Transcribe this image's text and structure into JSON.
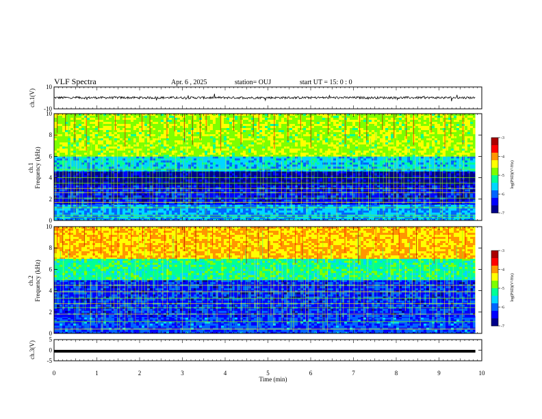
{
  "header": {
    "title": "VLF Spectra",
    "date": "Apr. 6  , 2025",
    "station": "station= OUJ",
    "start": "start  UT  =   15: 0  : 0"
  },
  "colors": {
    "colormap": [
      "#00008b",
      "#0000ff",
      "#0064ff",
      "#00d7ff",
      "#00ff96",
      "#7dff00",
      "#ffff00",
      "#ff9600",
      "#ff0000",
      "#aa0000"
    ]
  },
  "chart_data": [
    {
      "id": "ch1-waveform",
      "type": "line",
      "ylabel": "ch.1(V)",
      "ylim": [
        -10,
        10
      ],
      "yticks": [
        "10",
        "-10"
      ],
      "description": "noisy waveform",
      "baseline": 0.2,
      "amplitude": 1.0
    },
    {
      "id": "ch1-spectrogram",
      "type": "heatmap",
      "ylabel_line1": "ch.1",
      "ylabel_line2": "Frequency  (kHz)",
      "ylim": [
        0,
        10
      ],
      "yticks": [
        "0",
        "2",
        "4",
        "6",
        "8",
        "10"
      ],
      "xlim": [
        0,
        10
      ],
      "colorbar": {
        "label": "log(PSD)(V²/Hz)",
        "range": [
          -7,
          -3
        ],
        "ticks": [
          "-3",
          "-4",
          "-5",
          "-6",
          "-7"
        ]
      },
      "bands": [
        {
          "from": 0,
          "to": 1.5,
          "level": 0.3
        },
        {
          "from": 1.5,
          "to": 3.3,
          "level": 0.15
        },
        {
          "from": 3.3,
          "to": 4.6,
          "level": 0.06
        },
        {
          "from": 4.6,
          "to": 6.0,
          "level": 0.35
        },
        {
          "from": 6.0,
          "to": 10.0,
          "level": 0.58
        }
      ],
      "lines_khz": [
        0.3,
        0.5,
        1.2,
        1.7,
        2.1,
        2.6,
        3.0,
        3.5,
        4.0,
        4.8
      ]
    },
    {
      "id": "ch2-spectrogram",
      "type": "heatmap",
      "ylabel_line1": "ch.2",
      "ylabel_line2": "Frequency  (kHz)",
      "ylim": [
        0,
        10
      ],
      "yticks": [
        "0",
        "2",
        "4",
        "6",
        "8",
        "10"
      ],
      "xlim": [
        0,
        10
      ],
      "colorbar": {
        "label": "log(PSD)(V²/Hz)",
        "range": [
          -7,
          -3
        ],
        "ticks": [
          "-3",
          "-4",
          "-5",
          "-6",
          "-7"
        ]
      },
      "bands": [
        {
          "from": 0,
          "to": 1.5,
          "level": 0.22
        },
        {
          "from": 1.5,
          "to": 5.0,
          "level": 0.18
        },
        {
          "from": 5.0,
          "to": 7.0,
          "level": 0.45
        },
        {
          "from": 7.0,
          "to": 10.0,
          "level": 0.7
        }
      ],
      "lines_khz": [
        0.4,
        1.1,
        1.8,
        2.4,
        2.8,
        3.3,
        3.9,
        4.5
      ]
    },
    {
      "id": "ch3-waveform",
      "type": "line",
      "ylabel": "ch.3(V)",
      "ylim": [
        -5,
        5
      ],
      "yticks": [
        "5",
        "0",
        "-5"
      ],
      "value": -0.5
    }
  ],
  "xaxis": {
    "label": "Time  (min)",
    "range": [
      0,
      10
    ],
    "ticks": [
      "0",
      "1",
      "2",
      "3",
      "4",
      "5",
      "6",
      "7",
      "8",
      "9",
      "10"
    ],
    "data_end": 9.85
  }
}
